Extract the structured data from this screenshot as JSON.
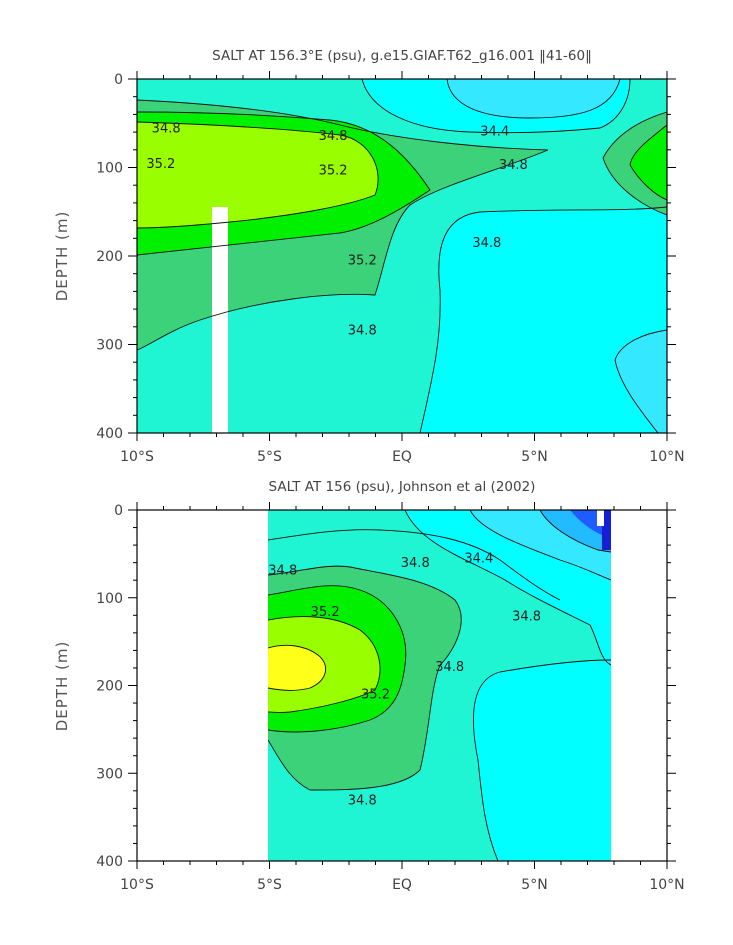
{
  "colors": {
    "c34_4": "#34e9ff",
    "c34_6": "#00ffff",
    "c34_8": "#20f5d3",
    "c35_0": "#3cd27a",
    "c35_2": "#00f000",
    "c35_4": "#99ff00",
    "c35_6": "#ffff1a",
    "c34_2": "#22bbff",
    "c34_0": "#1f5cff",
    "c33_8": "#1420d2",
    "missing": "#ffffff"
  },
  "chart_data": [
    {
      "type": "heatmap",
      "title": "SALT AT 156.3°E (psu), g.e15.GIAF.T62_g16.001 ‖41-60‖",
      "ylabel": "DEPTH (m)",
      "xlabel": "",
      "x_ticks": [
        "10°S",
        "5°S",
        "EQ",
        "5°N",
        "10°N"
      ],
      "y_ticks": [
        "0",
        "100",
        "200",
        "300",
        "400"
      ],
      "xlim": [
        -10,
        10
      ],
      "ylim": [
        400,
        0
      ],
      "contour_labels": [
        {
          "text": "34.8",
          "lat": -8.9,
          "depth": 55
        },
        {
          "text": "34.8",
          "lat": -2.6,
          "depth": 63
        },
        {
          "text": "34.4",
          "lat": 3.5,
          "depth": 58
        },
        {
          "text": "35.2",
          "lat": -9.1,
          "depth": 95
        },
        {
          "text": "35.2",
          "lat": -2.6,
          "depth": 102
        },
        {
          "text": "34.8",
          "lat": 4.2,
          "depth": 96
        },
        {
          "text": "35.2",
          "lat": -1.5,
          "depth": 204
        },
        {
          "text": "34.8",
          "lat": 3.2,
          "depth": 184
        },
        {
          "text": "34.8",
          "lat": -1.5,
          "depth": 283
        }
      ]
    },
    {
      "type": "heatmap",
      "title": "SALT AT 156 (psu), Johnson et al (2002)",
      "ylabel": "DEPTH (m)",
      "xlabel": "",
      "x_ticks": [
        "10°S",
        "5°S",
        "EQ",
        "5°N",
        "10°N"
      ],
      "y_ticks": [
        "0",
        "100",
        "200",
        "300",
        "400"
      ],
      "xlim": [
        -10,
        10
      ],
      "ylim": [
        400,
        0
      ],
      "data_extent_lat": [
        -5,
        8
      ],
      "contour_labels": [
        {
          "text": "34.8",
          "lat": -4.5,
          "depth": 68
        },
        {
          "text": "34.8",
          "lat": 0.5,
          "depth": 59
        },
        {
          "text": "34.4",
          "lat": 2.9,
          "depth": 54
        },
        {
          "text": "34.8",
          "lat": 4.7,
          "depth": 120
        },
        {
          "text": "35.2",
          "lat": -2.9,
          "depth": 115
        },
        {
          "text": "35.2",
          "lat": -1.0,
          "depth": 209
        },
        {
          "text": "34.8",
          "lat": 1.8,
          "depth": 178
        },
        {
          "text": "34.8",
          "lat": -1.5,
          "depth": 330
        }
      ]
    }
  ]
}
